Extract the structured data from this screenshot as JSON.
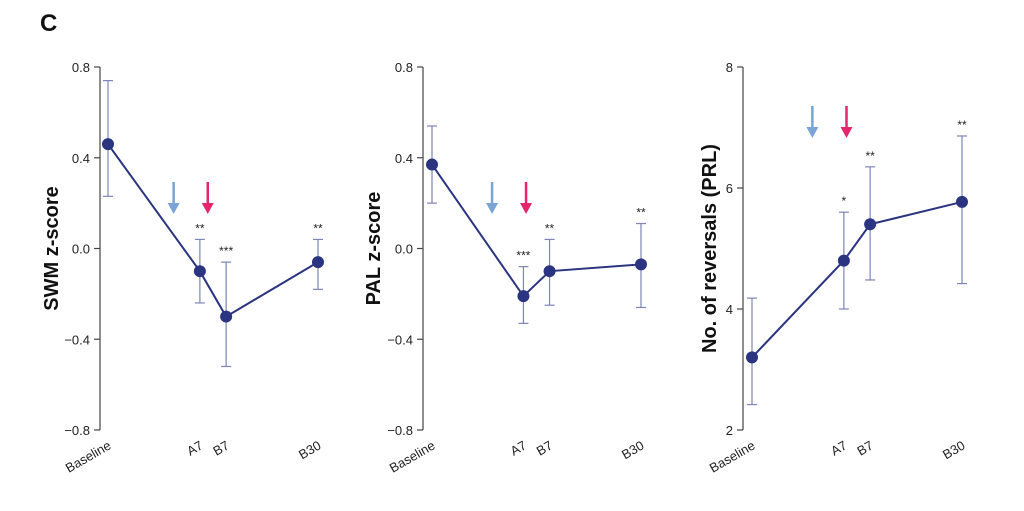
{
  "panel_letter": "C",
  "colors": {
    "series": "#2b3480",
    "errorbar": "#7d84b8",
    "arrow_blue": "#7aa3d6",
    "arrow_pink": "#e5266f"
  },
  "chart_data": [
    {
      "type": "line",
      "ylabel": "SWM z-score",
      "ylim": [
        -0.8,
        0.8
      ],
      "yticks": [
        0.8,
        0.4,
        0.0,
        -0.4,
        -0.8
      ],
      "ytick_labels": [
        "0.8",
        "0.4",
        "0.0",
        "−0.4",
        "−0.8"
      ],
      "categories": [
        "Baseline",
        "A7",
        "B7",
        "B30"
      ],
      "x": [
        0,
        7,
        9,
        16
      ],
      "values": [
        0.46,
        -0.1,
        -0.3,
        -0.06
      ],
      "err_low": [
        0.23,
        -0.24,
        -0.52,
        -0.18
      ],
      "err_high": [
        0.74,
        0.04,
        -0.06,
        0.04
      ],
      "significance": [
        "",
        "**",
        "***",
        "**"
      ],
      "arrows": [
        {
          "x": 5,
          "color": "blue"
        },
        {
          "x": 7.6,
          "color": "pink"
        }
      ]
    },
    {
      "type": "line",
      "ylabel": "PAL z-score",
      "ylim": [
        -0.8,
        0.8
      ],
      "yticks": [
        0.8,
        0.4,
        0.0,
        -0.4,
        -0.8
      ],
      "ytick_labels": [
        "0.8",
        "0.4",
        "0.0",
        "−0.4",
        "−0.8"
      ],
      "categories": [
        "Baseline",
        "A7",
        "B7",
        "B30"
      ],
      "x": [
        0,
        7,
        9,
        16
      ],
      "values": [
        0.37,
        -0.21,
        -0.1,
        -0.07
      ],
      "err_low": [
        0.2,
        -0.33,
        -0.25,
        -0.26
      ],
      "err_high": [
        0.54,
        -0.08,
        0.04,
        0.11
      ],
      "significance": [
        "",
        "***",
        "**",
        "**"
      ],
      "arrows": [
        {
          "x": 4.6,
          "color": "blue"
        },
        {
          "x": 7.2,
          "color": "pink"
        }
      ]
    },
    {
      "type": "line",
      "ylabel": "No. of reversals (PRL)",
      "ylim": [
        2,
        8
      ],
      "yticks": [
        8,
        6,
        4,
        2
      ],
      "ytick_labels": [
        "8",
        "6",
        "4",
        "2"
      ],
      "categories": [
        "Baseline",
        "A7",
        "B7",
        "B30"
      ],
      "x": [
        0,
        7,
        9,
        16
      ],
      "values": [
        3.2,
        4.8,
        5.4,
        5.77
      ],
      "err_low": [
        2.42,
        4.0,
        4.48,
        4.42
      ],
      "err_high": [
        4.18,
        5.6,
        6.35,
        6.86
      ],
      "significance": [
        "",
        "*",
        "**",
        "**"
      ],
      "arrows": [
        {
          "x": 4.6,
          "color": "blue"
        },
        {
          "x": 7.2,
          "color": "pink"
        }
      ]
    }
  ]
}
